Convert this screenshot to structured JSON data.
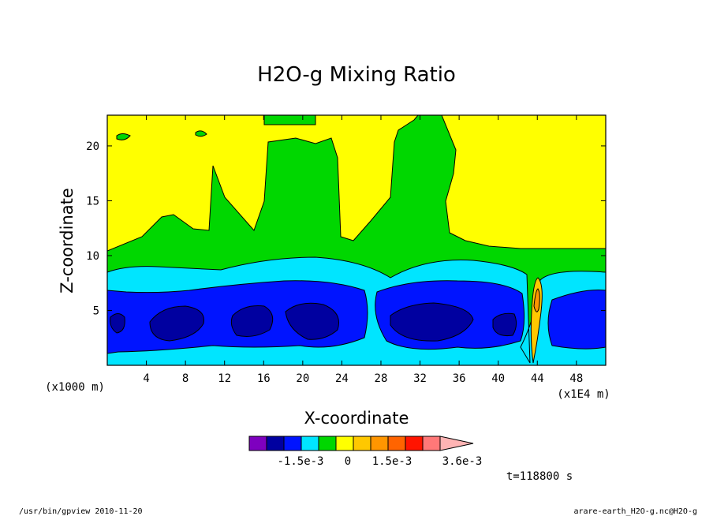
{
  "chart_data": {
    "type": "heatmap",
    "title": "H2O-g Mixing Ratio",
    "xlabel": "X-coordinate",
    "ylabel": "Z-coordinate",
    "x_unit": "(x1E4 m)",
    "y_unit": "(x1000 m)",
    "x_ticks": [
      "4",
      "8",
      "12",
      "16",
      "20",
      "24",
      "28",
      "32",
      "36",
      "40",
      "44",
      "48"
    ],
    "y_ticks": [
      "5",
      "10",
      "15",
      "20"
    ],
    "xlim": [
      0,
      51
    ],
    "ylim": [
      0,
      22.8
    ],
    "colorbar": {
      "colors": [
        "#7e00bf",
        "#0000a0",
        "#0014ff",
        "#00e5ff",
        "#00d700",
        "#ffff00",
        "#ffc800",
        "#ff9600",
        "#ff6400",
        "#ff1400",
        "#ff7878",
        "#ffb4b4"
      ],
      "labels": [
        "-1.5e-3",
        "0",
        "1.5e-3",
        "3.6e-3"
      ]
    },
    "time_label": "t=118800 s"
  },
  "footer": {
    "left": "/usr/bin/gpview   2010-11-20",
    "right": "arare-earth_H2O-g.nc@H2O-g"
  }
}
